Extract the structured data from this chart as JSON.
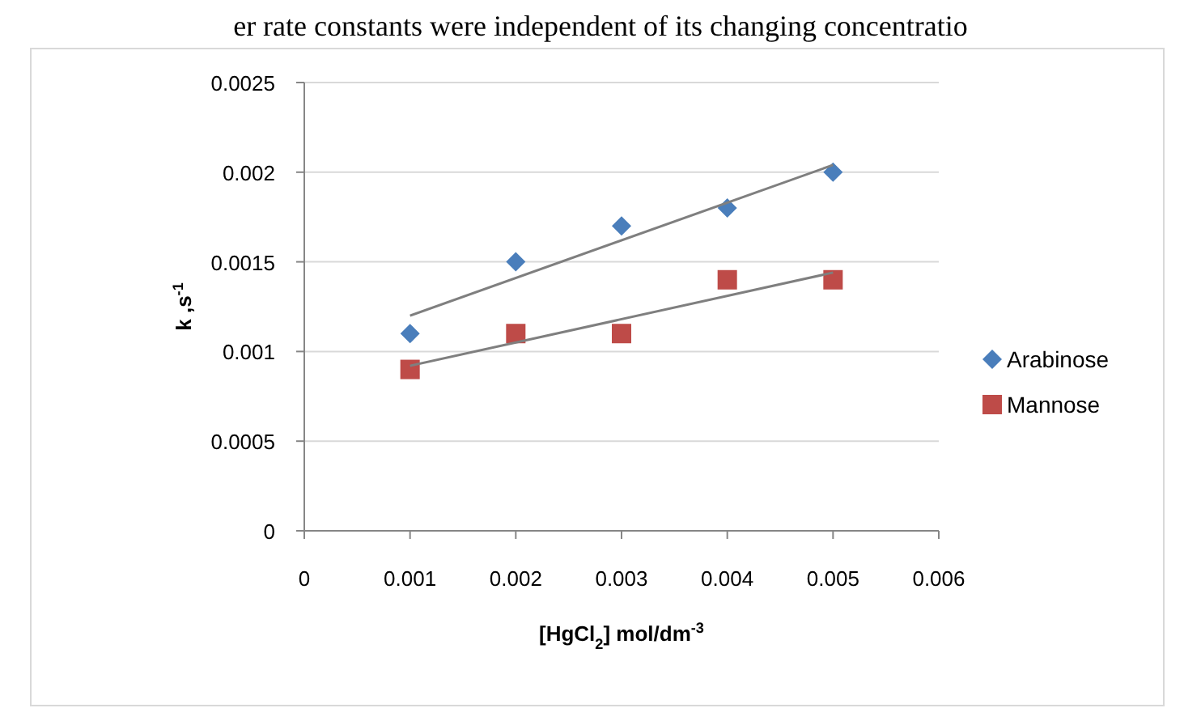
{
  "chart_data": {
    "type": "scatter",
    "annotations": [
      "er rate constants were independent of its changing concentratio"
    ],
    "xlabel": "[HgCl$_{2}$] mol/dm$^{-3}$",
    "ylabel": "k ,s$^{-1}$",
    "xlim": [
      0,
      0.006
    ],
    "xticks": [
      0,
      0.001,
      0.002,
      0.003,
      0.004,
      0.005,
      0.006
    ],
    "ylim": [
      0,
      0.0025
    ],
    "yticks": [
      0,
      0.0005,
      0.001,
      0.0015,
      0.002,
      0.0025
    ],
    "grid": "y",
    "legend": "right",
    "series": [
      {
        "name": "Arabinose",
        "color": "#4a7ebb",
        "marker": "diamond",
        "x": [
          0.001,
          0.002,
          0.003,
          0.004,
          0.005
        ],
        "values": [
          0.0011,
          0.0015,
          0.0017,
          0.0018,
          0.002
        ]
      },
      {
        "name": "Mannose",
        "color": "#be4b48",
        "marker": "square",
        "x": [
          0.001,
          0.002,
          0.003,
          0.004,
          0.005
        ],
        "values": [
          0.0009,
          0.0011,
          0.0011,
          0.0014,
          0.0014
        ]
      },
      {
        "type": "line",
        "color": "#7f7f7f",
        "marker": "none",
        "x": [
          0.001,
          0.005
        ],
        "values": [
          0.0012,
          0.00204
        ]
      },
      {
        "type": "line",
        "color": "#7f7f7f",
        "marker": "none",
        "x": [
          0.001,
          0.005
        ],
        "values": [
          0.00092,
          0.00144
        ]
      }
    ]
  }
}
